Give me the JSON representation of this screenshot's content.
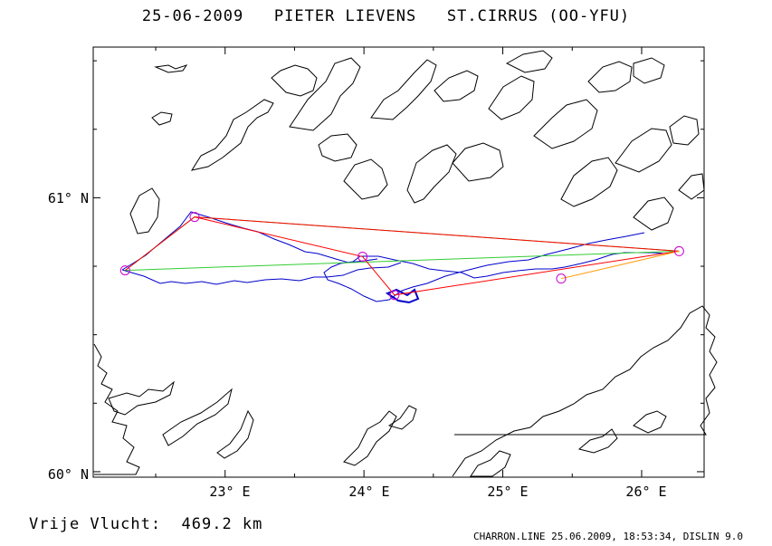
{
  "header": {
    "date": "25-06-2009",
    "pilot": "PIETER LIEVENS",
    "glider": "ST.CIRRUS (OO-YFU)"
  },
  "map": {
    "lat_labels": [
      "61° N",
      "60° N"
    ],
    "lon_labels": [
      "23° E",
      "24° E",
      "25° E",
      "26° E"
    ],
    "lat_range": [
      59.98,
      61.55
    ],
    "lon_range": [
      22.05,
      26.45
    ],
    "colors": {
      "coast": "#000000",
      "track": "#0000cc",
      "task_green": "#33cc33",
      "task_red": "#ff0000",
      "task_orange": "#ff9900",
      "turnpoint": "#cc00cc"
    }
  },
  "turnpoints": [
    {
      "lon": 22.28,
      "lat": 60.735
    },
    {
      "lon": 22.78,
      "lat": 60.93
    },
    {
      "lon": 23.99,
      "lat": 60.785
    },
    {
      "lon": 24.22,
      "lat": 60.645
    },
    {
      "lon": 25.42,
      "lat": 60.705
    },
    {
      "lon": 26.27,
      "lat": 60.805
    }
  ],
  "task_lines": {
    "green": [
      [
        22.28,
        60.735
      ],
      [
        22.78,
        60.93
      ],
      [
        26.27,
        60.805
      ],
      [
        22.28,
        60.735
      ]
    ],
    "red": [
      [
        22.28,
        60.735
      ],
      [
        22.78,
        60.93
      ],
      [
        23.99,
        60.785
      ],
      [
        24.22,
        60.645
      ],
      [
        26.27,
        60.805
      ],
      [
        22.78,
        60.93
      ],
      [
        22.28,
        60.735
      ]
    ],
    "orange": [
      [
        25.42,
        60.705
      ],
      [
        26.27,
        60.805
      ]
    ]
  },
  "footer": {
    "free_flight": "Vrije Vlucht:  469.2 km",
    "software": "CHARRON.LINE 25.06.2009, 18:53:34, DISLIN 9.0"
  }
}
